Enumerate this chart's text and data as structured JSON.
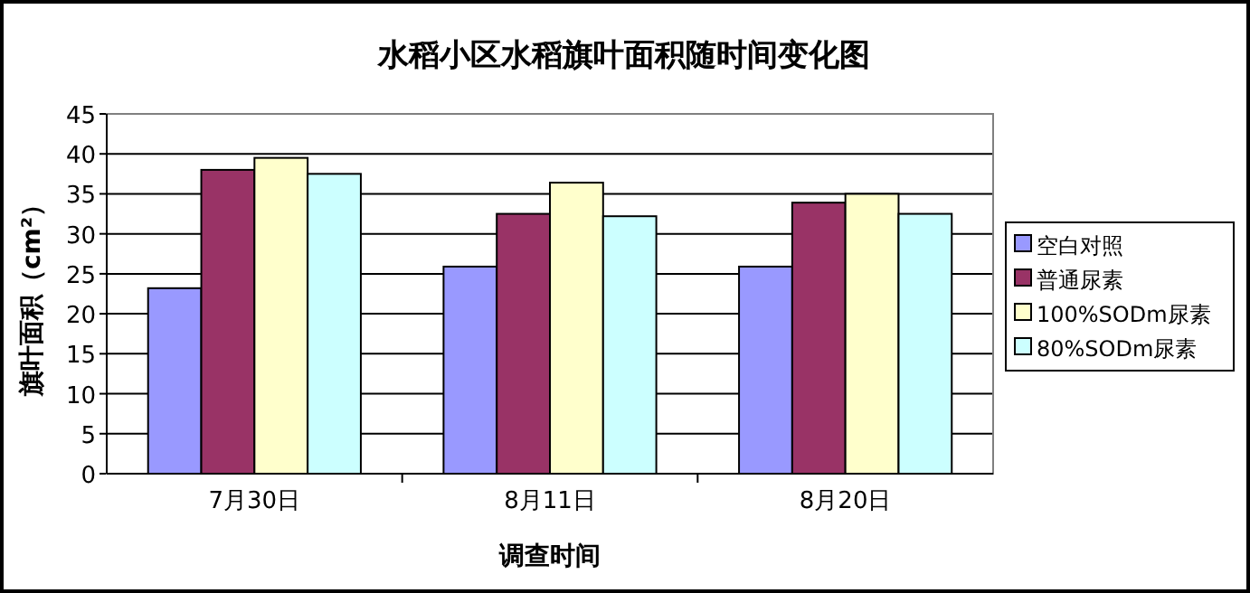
{
  "chart_data": {
    "type": "bar",
    "title": "水稻小区水稻旗叶面积随时间变化图",
    "xlabel": "调查时间",
    "ylabel": "旗叶面积（cm²）",
    "categories": [
      "7月30日",
      "8月11日",
      "8月20日"
    ],
    "series": [
      {
        "name": "空白对照",
        "color": "#9999ff",
        "values": [
          23.2,
          25.9,
          25.9
        ]
      },
      {
        "name": "普通尿素",
        "color": "#993366",
        "values": [
          38,
          32.5,
          33.9
        ]
      },
      {
        "name": "100%SODm尿素",
        "color": "#ffffcc",
        "values": [
          39.5,
          36.4,
          35
        ]
      },
      {
        "name": "80%SODm尿素",
        "color": "#ccffff",
        "values": [
          37.5,
          32.2,
          32.5
        ]
      }
    ],
    "ylim": [
      0,
      45
    ],
    "yticks": [
      0,
      5,
      10,
      15,
      20,
      25,
      30,
      35,
      40,
      45
    ],
    "grid": "y",
    "legend": "right"
  }
}
